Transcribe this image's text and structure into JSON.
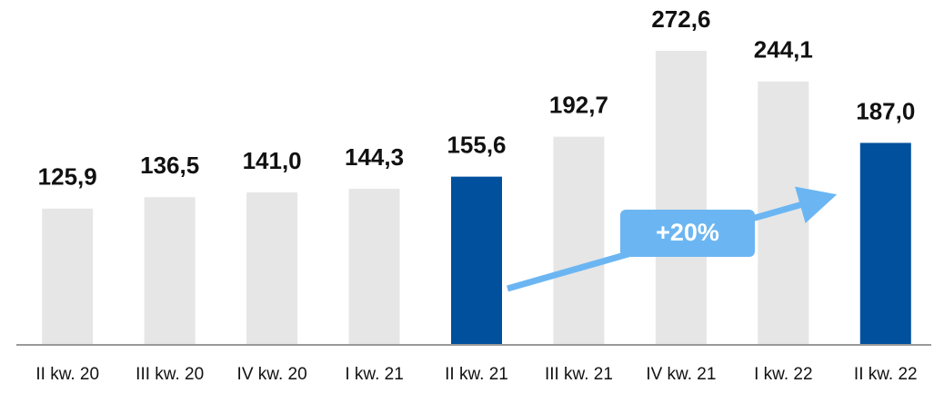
{
  "chart_data": {
    "type": "bar",
    "categories": [
      "II kw. 20",
      "III kw. 20",
      "IV kw. 20",
      "I kw. 21",
      "II kw. 21",
      "III kw. 21",
      "IV kw. 21",
      "I kw. 22",
      "II kw. 22"
    ],
    "values": [
      125.9,
      136.5,
      141.0,
      144.3,
      155.6,
      192.7,
      272.6,
      244.1,
      187.0
    ],
    "value_labels": [
      "125,9",
      "136,5",
      "141,0",
      "144,3",
      "155,6",
      "192,7",
      "272,6",
      "244,1",
      "187,0"
    ],
    "colors": [
      "#e6e6e6",
      "#e6e6e6",
      "#e6e6e6",
      "#e6e6e6",
      "#00509e",
      "#e6e6e6",
      "#e6e6e6",
      "#e6e6e6",
      "#00509e"
    ],
    "annotation": "+20%"
  }
}
